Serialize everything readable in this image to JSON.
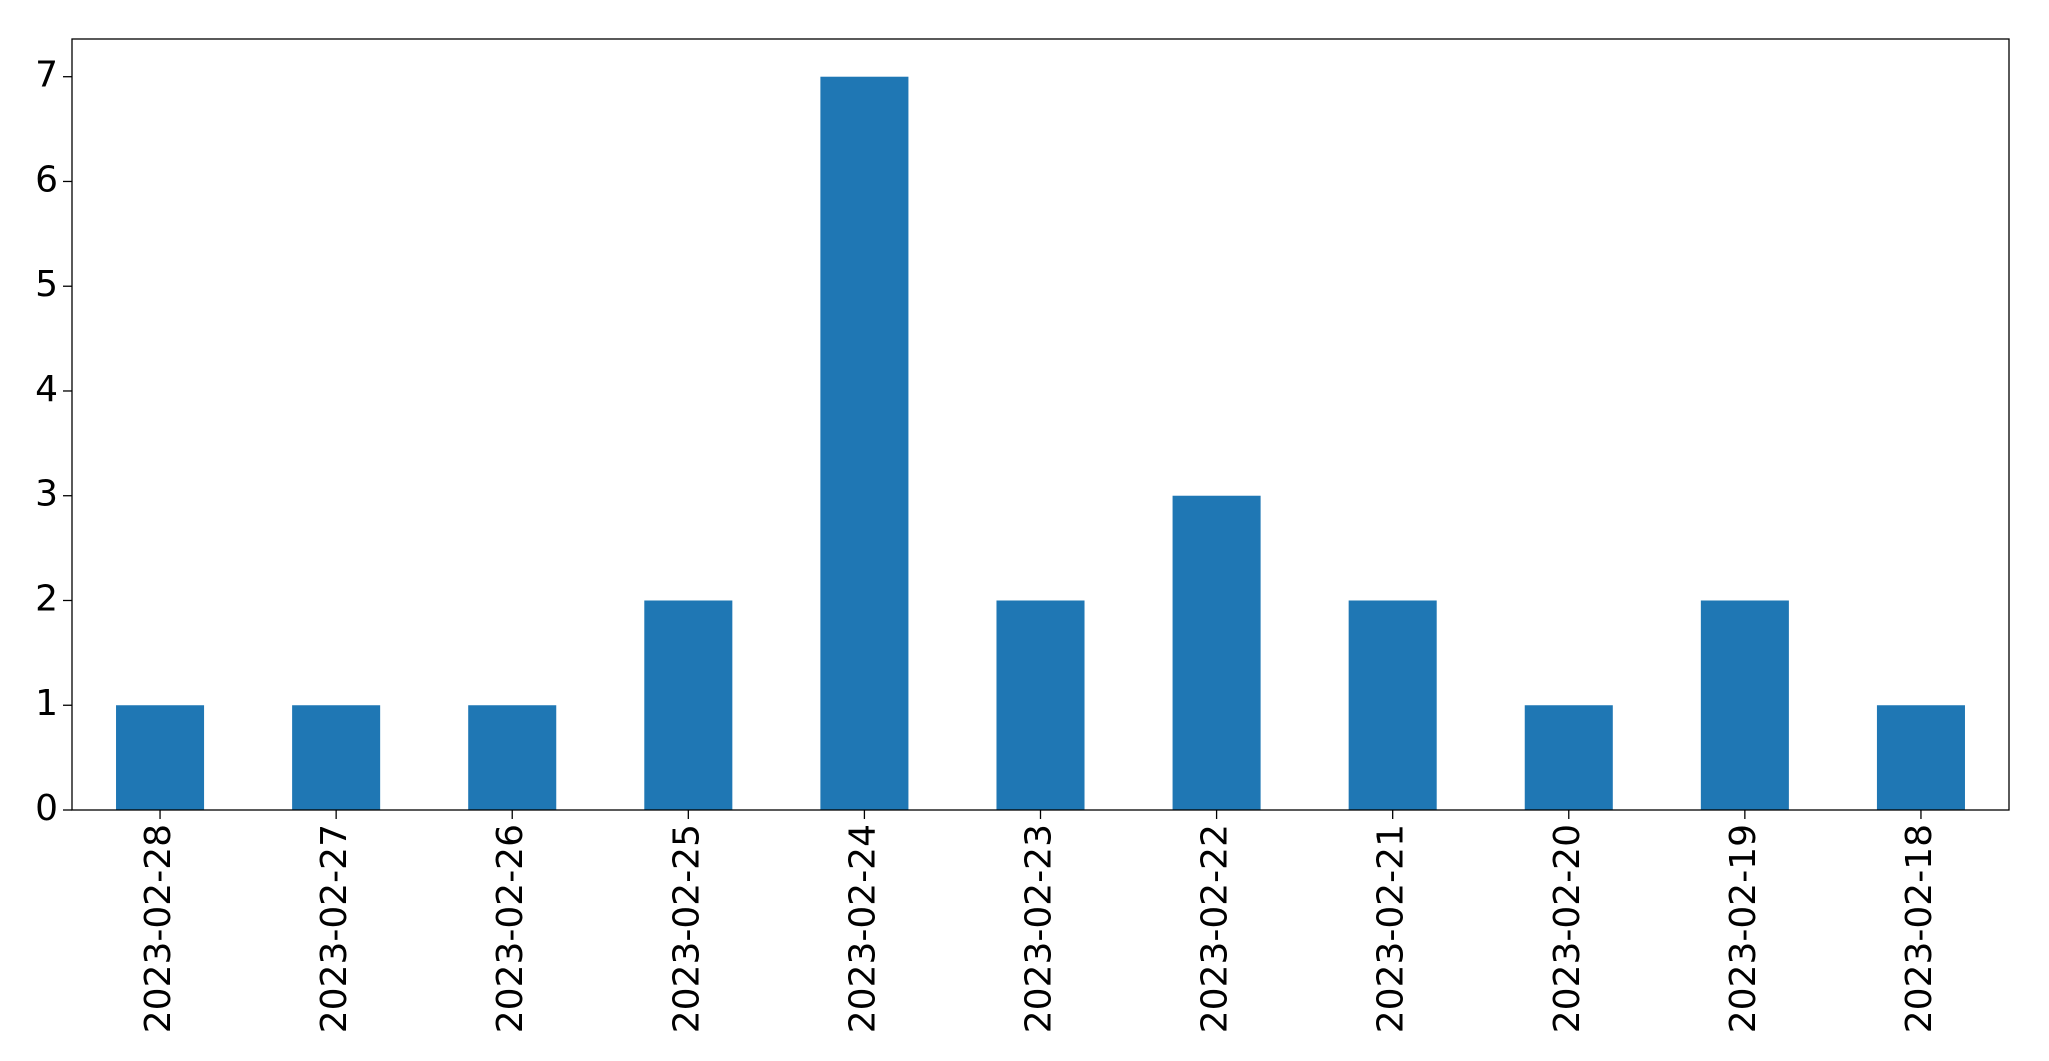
{
  "chart_data": {
    "type": "bar",
    "categories": [
      "2023-02-28",
      "2023-02-27",
      "2023-02-26",
      "2023-02-25",
      "2023-02-24",
      "2023-02-23",
      "2023-02-22",
      "2023-02-21",
      "2023-02-20",
      "2023-02-19",
      "2023-02-18"
    ],
    "values": [
      1,
      1,
      1,
      2,
      7,
      2,
      3,
      2,
      1,
      2,
      1
    ],
    "color": "#1f77b4",
    "ylim": [
      0,
      7.36
    ],
    "yticks": [
      0,
      1,
      2,
      3,
      4,
      5,
      6,
      7
    ],
    "grid": false
  }
}
